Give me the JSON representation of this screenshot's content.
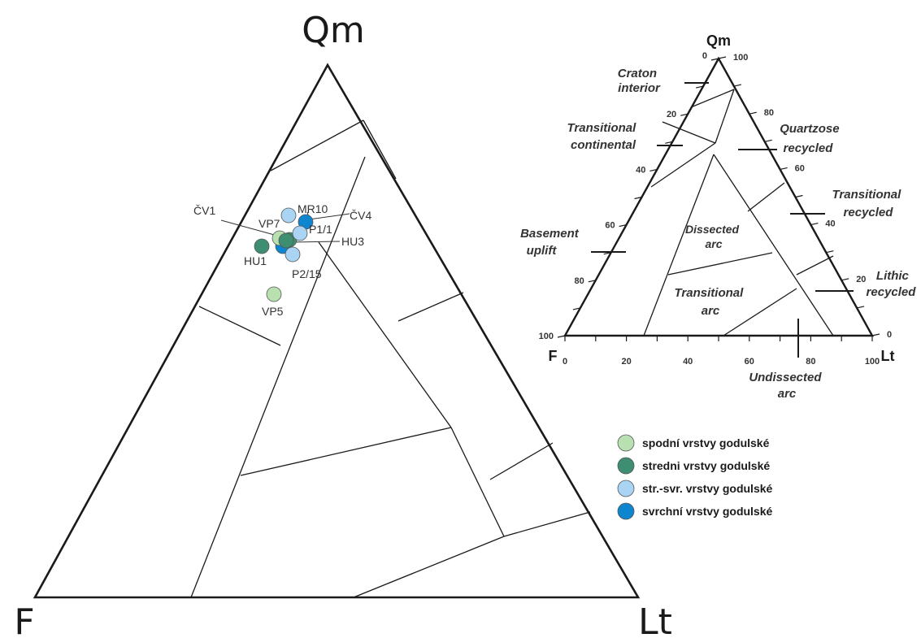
{
  "main_diagram": {
    "apices": {
      "top": "Qm",
      "left": "F",
      "right": "Lt"
    },
    "samples": [
      {
        "label": "ČV1",
        "unit": "spodni"
      },
      {
        "label": "MR10",
        "unit": "str_svr"
      },
      {
        "label": "ČV4",
        "unit": "svrchni"
      },
      {
        "label": "VP7",
        "unit": "spodni"
      },
      {
        "label": "P1/1",
        "unit": "str_svr"
      },
      {
        "label": "HU3",
        "unit": "stredni"
      },
      {
        "label": "HU1",
        "unit": "stredni"
      },
      {
        "label": "P2/15",
        "unit": "str_svr"
      },
      {
        "label": "VP5",
        "unit": "spodni"
      }
    ]
  },
  "reference_diagram": {
    "apices": {
      "top": "Qm",
      "left": "F",
      "right": "Lt"
    },
    "left_ticks": [
      "0",
      "20",
      "40",
      "60",
      "80",
      "100"
    ],
    "right_ticks": [
      "100",
      "80",
      "60",
      "40",
      "20",
      "0"
    ],
    "bottom_ticks": [
      "0",
      "20",
      "40",
      "60",
      "80",
      "100"
    ],
    "fields": {
      "craton_interior": [
        "Craton",
        "interior"
      ],
      "transitional_continental": [
        "Transitional",
        "continental"
      ],
      "basement_uplift": [
        "Basement",
        "uplift"
      ],
      "quartzose_recycled": [
        "Quartzose",
        "recycled"
      ],
      "transitional_recycled": [
        "Transitional",
        "recycled"
      ],
      "lithic_recycled": [
        "Lithic",
        "recycled"
      ],
      "dissected_arc": [
        "Dissected",
        "arc"
      ],
      "transitional_arc": [
        "Transitional",
        "arc"
      ],
      "undissected_arc": [
        "Undissected",
        "arc"
      ]
    }
  },
  "legend": [
    {
      "key": "spodni",
      "label": "spodní vrstvy godulské",
      "color": "#b9e0b1"
    },
    {
      "key": "stredni",
      "label": "stredni vrstvy godulské",
      "color": "#3e8f71"
    },
    {
      "key": "str_svr",
      "label": "str.-svr. vrstvy godulské",
      "color": "#a9d4f3"
    },
    {
      "key": "svrchni",
      "label": "svrchní vrstvy godulské",
      "color": "#0d86cf"
    }
  ]
}
